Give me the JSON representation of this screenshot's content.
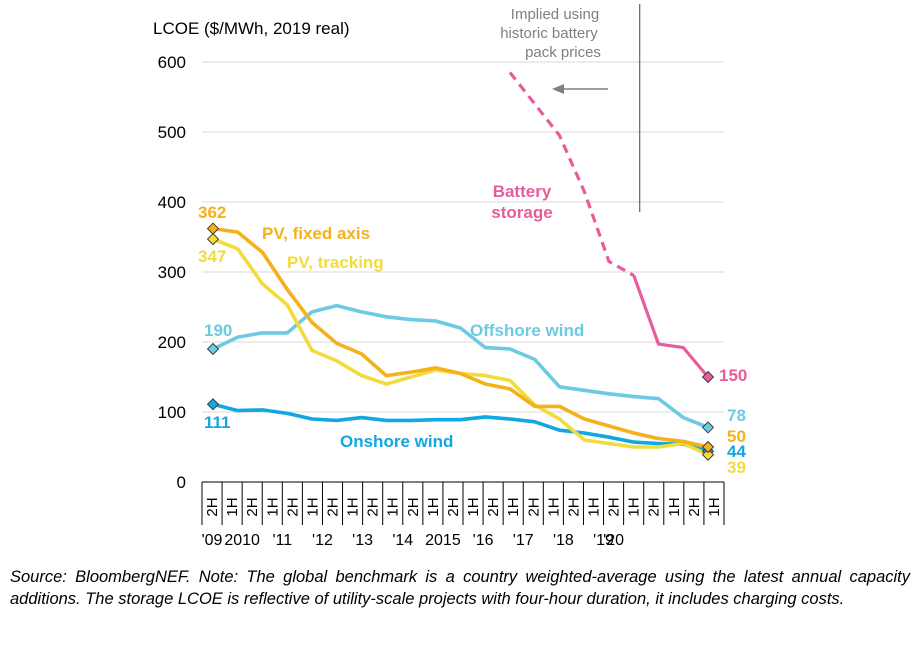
{
  "chart_data": {
    "type": "line",
    "ylabel": "LCOE ($/MWh, 2019 real)",
    "ylim": [
      0,
      600
    ],
    "yticks": [
      0,
      100,
      200,
      300,
      400,
      500,
      600
    ],
    "grid": true,
    "half_labels": [
      "2H",
      "1H",
      "2H",
      "1H",
      "2H",
      "1H",
      "2H",
      "1H",
      "2H",
      "1H",
      "2H",
      "1H",
      "2H",
      "1H",
      "2H",
      "1H",
      "2H",
      "1H",
      "2H",
      "1H",
      "2H",
      "1H",
      "2H",
      "1H",
      "2H",
      "1H"
    ],
    "year_labels": [
      "'09",
      "2010",
      "'11",
      "'12",
      "'13",
      "'14",
      "2015",
      "'16",
      "'17",
      "'18",
      "'19",
      "'20"
    ],
    "year_label_positions": [
      0,
      1.5,
      3.5,
      5.5,
      7.5,
      9.5,
      11.5,
      13.5,
      15.5,
      17.5,
      19.5,
      20
    ],
    "annotation": "Implied using historic battery pack prices",
    "divider_after_index": 17,
    "series": [
      {
        "name": "Battery storage",
        "color": "#E95C9B",
        "x": [
          12,
          13,
          14,
          15,
          16,
          17,
          18,
          19,
          20
        ],
        "values": [
          585,
          540,
          495,
          415,
          315,
          295,
          197,
          192,
          150
        ],
        "dashed_until_index": 17,
        "start_label": "",
        "end_label": "150",
        "endpoint_marker": "end"
      },
      {
        "name": "PV, fixed axis",
        "color": "#F5B11B",
        "x": [
          0,
          1,
          2,
          3,
          4,
          5,
          6,
          7,
          8,
          9,
          10,
          11,
          12,
          13,
          14,
          15,
          16,
          17,
          18,
          19,
          20
        ],
        "values": [
          362,
          357,
          328,
          275,
          228,
          198,
          183,
          152,
          157,
          163,
          155,
          140,
          133,
          108,
          108,
          90,
          80,
          70,
          62,
          58,
          50
        ],
        "start_label": "362",
        "end_label": "50",
        "endpoint_marker": "both"
      },
      {
        "name": "PV, tracking",
        "color": "#F2DC3C",
        "x": [
          0,
          1,
          2,
          3,
          4,
          5,
          6,
          7,
          8,
          9,
          10,
          11,
          12,
          13,
          14,
          15,
          16,
          17,
          18,
          19,
          20
        ],
        "values": [
          347,
          333,
          283,
          253,
          188,
          173,
          152,
          140,
          150,
          160,
          155,
          152,
          145,
          110,
          90,
          60,
          55,
          50,
          50,
          55,
          39
        ],
        "start_label": "347",
        "end_label": "39",
        "endpoint_marker": "both"
      },
      {
        "name": "Offshore wind",
        "color": "#6CCBE2",
        "x": [
          0,
          1,
          2,
          3,
          4,
          5,
          6,
          7,
          8,
          9,
          10,
          11,
          12,
          13,
          14,
          15,
          16,
          17,
          18,
          19,
          20
        ],
        "values": [
          190,
          207,
          213,
          213,
          243,
          252,
          243,
          236,
          232,
          230,
          220,
          192,
          190,
          175,
          136,
          131,
          126,
          122,
          119,
          92,
          78
        ],
        "start_label": "190",
        "end_label": "78",
        "endpoint_marker": "both"
      },
      {
        "name": "Onshore wind",
        "color": "#12A7E0",
        "x": [
          0,
          1,
          2,
          3,
          4,
          5,
          6,
          7,
          8,
          9,
          10,
          11,
          12,
          13,
          14,
          15,
          16,
          17,
          18,
          19,
          20
        ],
        "values": [
          111,
          102,
          103,
          98,
          90,
          88,
          92,
          88,
          88,
          89,
          89,
          93,
          90,
          86,
          74,
          70,
          64,
          57,
          55,
          54,
          44
        ],
        "start_label": "111",
        "end_label": "44",
        "endpoint_marker": "both"
      }
    ]
  },
  "footnote": "Source: BloombergNEF. Note: The global benchmark is a country weighted-average using the latest annual capacity additions. The storage LCOE is reflective of utility-scale projects with four-hour duration, it includes charging costs."
}
